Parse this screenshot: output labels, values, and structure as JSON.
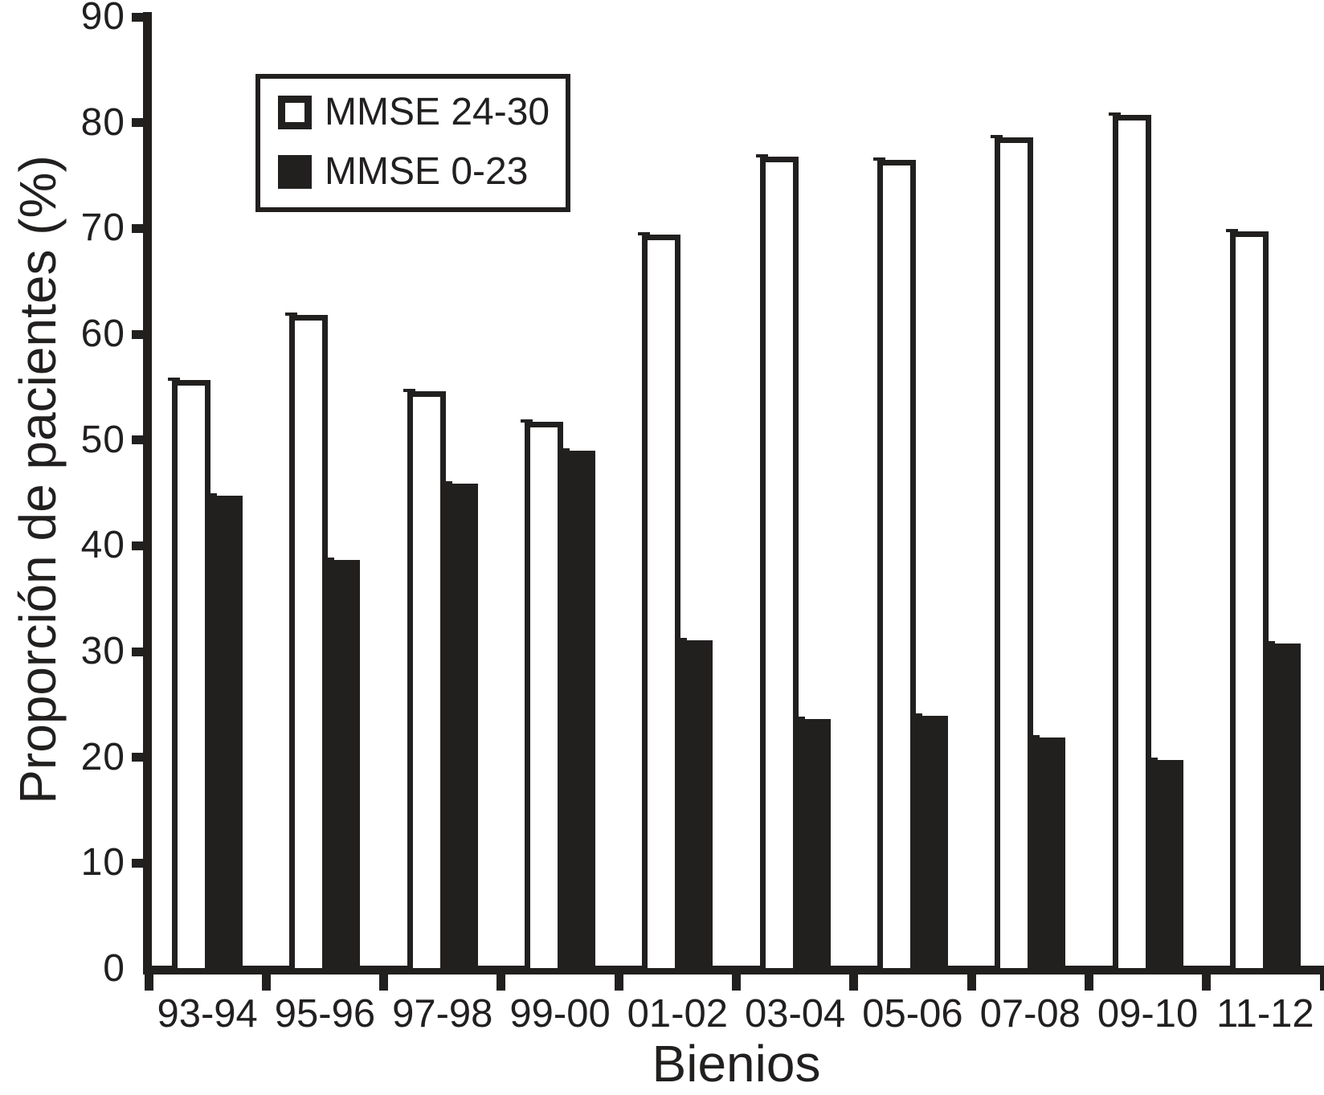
{
  "figure": {
    "background": "#ffffff",
    "ink_color": "#221f1f"
  },
  "legend": {
    "position": "top-left-inside",
    "items": [
      {
        "label": "MMSE 24-30",
        "swatch": "outlined-white-square"
      },
      {
        "label": "MMSE 0-23",
        "swatch": "filled-black-square"
      }
    ]
  },
  "chart_data": {
    "type": "bar",
    "title": "",
    "xlabel": "Bienios",
    "ylabel": "Proporción de pacientes (%)",
    "ylim": [
      0,
      90
    ],
    "yticks": [
      0,
      10,
      20,
      30,
      40,
      50,
      60,
      70,
      80,
      90
    ],
    "grid": false,
    "legend_position": "top-left-inside",
    "categories": [
      "93-94",
      "95-96",
      "97-98",
      "99-00",
      "01-02",
      "03-04",
      "05-06",
      "07-08",
      "09-10",
      "11-12"
    ],
    "series": [
      {
        "name": "MMSE 24-30",
        "style": "outlined-white",
        "values": [
          55.4,
          61.5,
          54.3,
          51.4,
          69.1,
          76.5,
          76.2,
          78.3,
          80.4,
          69.4
        ]
      },
      {
        "name": "MMSE 0-23",
        "style": "solid-black",
        "values": [
          44.6,
          38.5,
          45.7,
          48.8,
          30.9,
          23.5,
          23.8,
          21.7,
          19.6,
          30.6
        ]
      }
    ]
  }
}
